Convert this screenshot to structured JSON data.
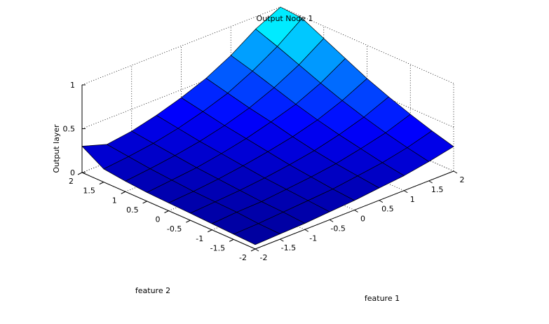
{
  "chart_data": {
    "type": "surface",
    "title": "Output Node 1",
    "xlabel": "feature 1",
    "ylabel": "feature 2",
    "zlabel": "Output layer",
    "xlim": [
      -2,
      2
    ],
    "ylim": [
      -2,
      2
    ],
    "zlim": [
      0,
      1
    ],
    "xticks": [
      "-2",
      "-1.5",
      "-1",
      "-0.5",
      "0",
      "0.5",
      "1",
      "1.5",
      "2"
    ],
    "yticks": [
      "-2",
      "-1.5",
      "-1",
      "-0.5",
      "0",
      "0.5",
      "1",
      "1.5",
      "2"
    ],
    "zticks": [
      "0",
      "0.5",
      "1"
    ],
    "grid": true,
    "x": [
      -2,
      -1.5,
      -1,
      -0.5,
      0,
      0.5,
      1,
      1.5,
      2
    ],
    "y": [
      -2,
      -1.5,
      -1,
      -0.5,
      0,
      0.5,
      1,
      1.5,
      2
    ],
    "z": [
      [
        0.05,
        0.06,
        0.07,
        0.09,
        0.11,
        0.14,
        0.17,
        0.22,
        0.28
      ],
      [
        0.06,
        0.07,
        0.09,
        0.11,
        0.13,
        0.17,
        0.21,
        0.27,
        0.35
      ],
      [
        0.07,
        0.09,
        0.1,
        0.13,
        0.16,
        0.2,
        0.26,
        0.33,
        0.43
      ],
      [
        0.08,
        0.1,
        0.12,
        0.15,
        0.19,
        0.24,
        0.31,
        0.4,
        0.52
      ],
      [
        0.09,
        0.11,
        0.14,
        0.18,
        0.23,
        0.29,
        0.37,
        0.48,
        0.62
      ],
      [
        0.1,
        0.13,
        0.16,
        0.21,
        0.27,
        0.35,
        0.44,
        0.57,
        0.74
      ],
      [
        0.12,
        0.15,
        0.19,
        0.24,
        0.31,
        0.4,
        0.52,
        0.67,
        0.86
      ],
      [
        0.15,
        0.18,
        0.22,
        0.28,
        0.36,
        0.46,
        0.6,
        0.77,
        0.98
      ],
      [
        0.3,
        0.21,
        0.25,
        0.32,
        0.41,
        0.52,
        0.67,
        0.86,
        1.0
      ]
    ]
  }
}
